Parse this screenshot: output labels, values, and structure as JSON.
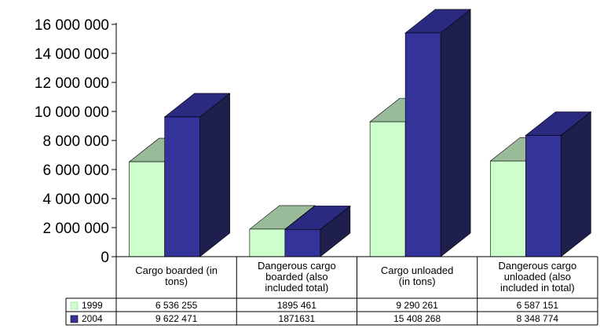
{
  "chart_data": {
    "type": "bar",
    "style": "3d-clustered-with-data-table",
    "categories": [
      [
        "Cargo boarded (in",
        "tons)"
      ],
      [
        "Dangerous cargo",
        "boarded (also",
        "included total)"
      ],
      [
        "Cargo  unloaded",
        "(in tons)"
      ],
      [
        "Dangerous cargo",
        "unloaded (also",
        "included in total)"
      ]
    ],
    "series": [
      {
        "name": "1999",
        "values": [
          6536255,
          1895461,
          9290261,
          6587151
        ],
        "display": [
          "6 536 255",
          "1895 461",
          "9 290 261",
          "6 587 151"
        ],
        "colors": {
          "front": "#ccffcc",
          "top": "#99bb99",
          "side": "#99cc99"
        }
      },
      {
        "name": "2004",
        "values": [
          9622471,
          1871631,
          15408268,
          8348774
        ],
        "display": [
          "9 622 471",
          "1871631",
          "15 408 268",
          "8 348 774"
        ],
        "colors": {
          "front": "#333399",
          "top": "#2a2a80",
          "side": "#1f1f4d"
        }
      }
    ],
    "y_ticks": [
      "0",
      "2 000 000",
      "4 000 000",
      "6 000 000",
      "8 000 000",
      "10 000 000",
      "12 000 000",
      "14 000 000",
      "16 000 000"
    ],
    "ylim": [
      0,
      16000000
    ],
    "grid": false,
    "legend": "in-data-table"
  }
}
